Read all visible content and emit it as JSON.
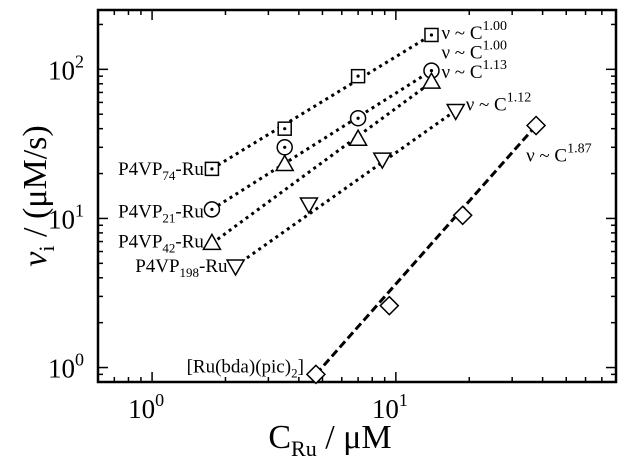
{
  "chart_data": {
    "type": "scatter",
    "xscale": "log",
    "yscale": "log",
    "xlim": [
      0.6,
      80
    ],
    "ylim": [
      0.8,
      250
    ],
    "grid": false,
    "x_ticks": [
      {
        "value": 1,
        "base": "10",
        "exp": "0"
      },
      {
        "value": 10,
        "base": "10",
        "exp": "1"
      }
    ],
    "y_ticks": [
      {
        "value": 1,
        "base": "10",
        "exp": "0"
      },
      {
        "value": 10,
        "base": "10",
        "exp": "1"
      },
      {
        "value": 100,
        "base": "10",
        "exp": "2"
      }
    ],
    "xlabel": {
      "main": "C",
      "sub": "Ru",
      "rest": " / μM"
    },
    "ylabel": {
      "main": "v",
      "sub": "i",
      "rest": " / (μM/s)"
    },
    "series": [
      {
        "name_main": "P4VP",
        "name_sub": "74",
        "name_rest": "-Ru",
        "marker": "square-dot",
        "line": "dotted",
        "x": [
          1.76,
          3.5,
          7.0,
          14.0
        ],
        "y": [
          21.5,
          40,
          90,
          170
        ],
        "annotation": {
          "prefix": "ν ~ C",
          "exp": "1.00"
        }
      },
      {
        "name_main": "P4VP",
        "name_sub": "21",
        "name_rest": "-Ru",
        "marker": "circle-dot",
        "line": "dotted",
        "x": [
          1.76,
          3.5,
          7.0,
          14.0
        ],
        "y": [
          11.5,
          30,
          47,
          98
        ],
        "annotation": {
          "prefix": "ν ~ C",
          "exp": "1.00"
        }
      },
      {
        "name_main": "P4VP",
        "name_sub": "42",
        "name_rest": "-Ru",
        "marker": "triangle-up",
        "line": "dotted",
        "x": [
          1.76,
          3.5,
          7.0,
          14.0
        ],
        "y": [
          6.8,
          23,
          34,
          82
        ],
        "annotation": {
          "prefix": "ν ~ C",
          "exp": "1.13"
        }
      },
      {
        "name_main": "P4VP",
        "name_sub": "198",
        "name_rest": "-Ru",
        "marker": "triangle-down",
        "line": "dotted",
        "x": [
          2.2,
          4.4,
          8.8,
          17.6
        ],
        "y": [
          4.8,
          12.5,
          25,
          53
        ],
        "annotation": {
          "prefix": "ν ~ C",
          "exp": "1.12"
        }
      },
      {
        "name_main": "[Ru(bda)(pic)",
        "name_sub": "2",
        "name_rest": "]",
        "marker": "diamond",
        "line": "dashed",
        "x": [
          4.7,
          9.4,
          18.8,
          37.6
        ],
        "y": [
          0.9,
          2.6,
          10.5,
          42
        ],
        "annotation": {
          "prefix": "ν ~ C",
          "exp": "1.87"
        }
      }
    ]
  }
}
